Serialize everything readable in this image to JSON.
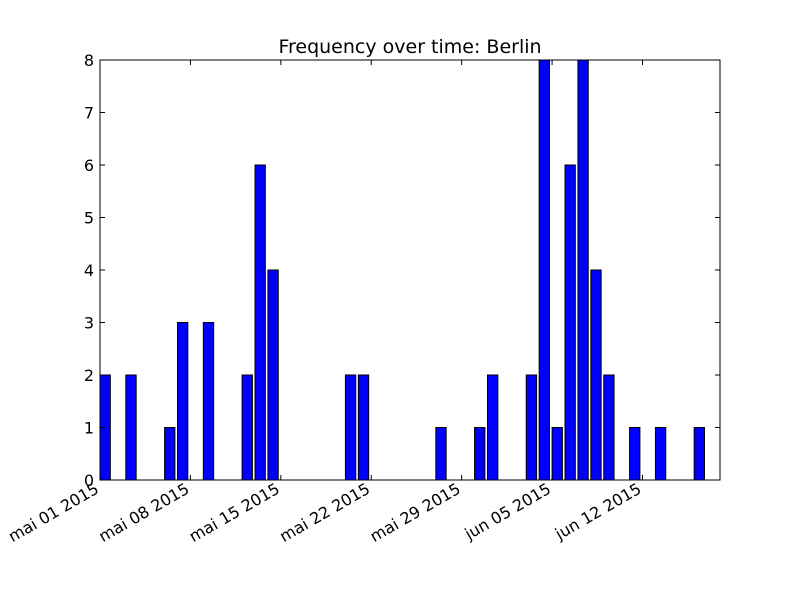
{
  "chart_data": {
    "type": "bar",
    "title": "Frequency over time: Berlin",
    "xlabel": "",
    "ylabel": "",
    "x_axis_type": "date",
    "xlim": [
      "2015-05-01",
      "2015-06-18"
    ],
    "ylim": [
      0,
      8
    ],
    "yticks": [
      0,
      1,
      2,
      3,
      4,
      5,
      6,
      7,
      8
    ],
    "xticks": [
      {
        "date": "2015-05-01",
        "label": "mai 01 2015"
      },
      {
        "date": "2015-05-08",
        "label": "mai 08 2015"
      },
      {
        "date": "2015-05-15",
        "label": "mai 15 2015"
      },
      {
        "date": "2015-05-22",
        "label": "mai 22 2015"
      },
      {
        "date": "2015-05-29",
        "label": "mai 29 2015"
      },
      {
        "date": "2015-06-05",
        "label": "jun 05 2015"
      },
      {
        "date": "2015-06-12",
        "label": "jun 12 2015"
      }
    ],
    "bar_color": "#0000ff",
    "grid": false,
    "legend": "none",
    "x": [
      "2015-05-01",
      "2015-05-03",
      "2015-05-06",
      "2015-05-07",
      "2015-05-09",
      "2015-05-12",
      "2015-05-13",
      "2015-05-14",
      "2015-05-20",
      "2015-05-21",
      "2015-05-27",
      "2015-05-30",
      "2015-05-31",
      "2015-06-03",
      "2015-06-04",
      "2015-06-05",
      "2015-06-06",
      "2015-06-07",
      "2015-06-08",
      "2015-06-09",
      "2015-06-11",
      "2015-06-13",
      "2015-06-16"
    ],
    "values": [
      2,
      2,
      1,
      3,
      3,
      2,
      6,
      4,
      2,
      2,
      1,
      1,
      2,
      2,
      8,
      1,
      6,
      8,
      4,
      2,
      1,
      1,
      1
    ]
  }
}
